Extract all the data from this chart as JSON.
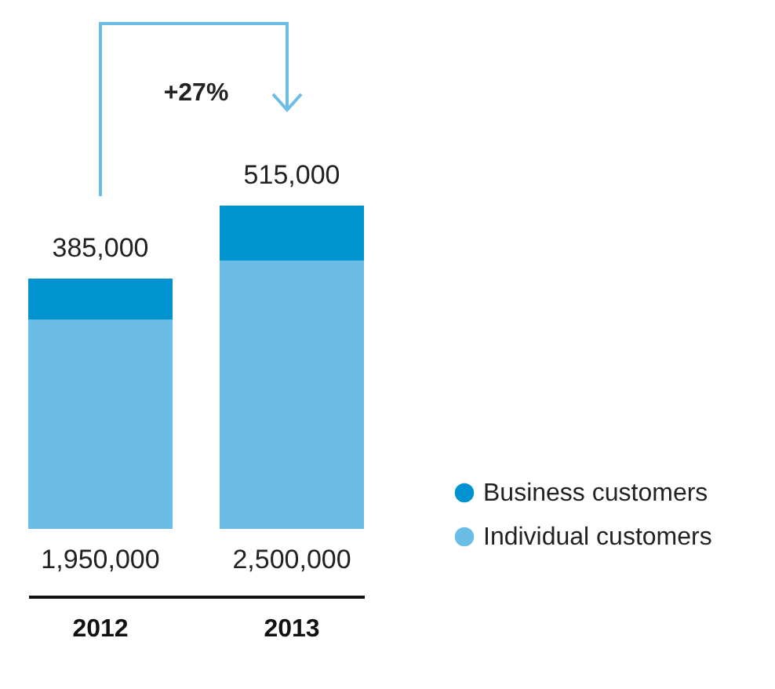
{
  "chart_data": {
    "type": "bar",
    "stacked": true,
    "categories": [
      "2012",
      "2013"
    ],
    "series": [
      {
        "name": "Individual customers",
        "color": "#6bbde6",
        "values": [
          1950000,
          2500000
        ],
        "value_labels": [
          "1,950,000",
          "2,500,000"
        ]
      },
      {
        "name": "Business customers",
        "color": "#0093d0",
        "values": [
          385000,
          515000
        ],
        "value_labels": [
          "385,000",
          "515,000"
        ]
      }
    ],
    "legend": "bottom right",
    "annotations": [
      "+27%"
    ]
  }
}
